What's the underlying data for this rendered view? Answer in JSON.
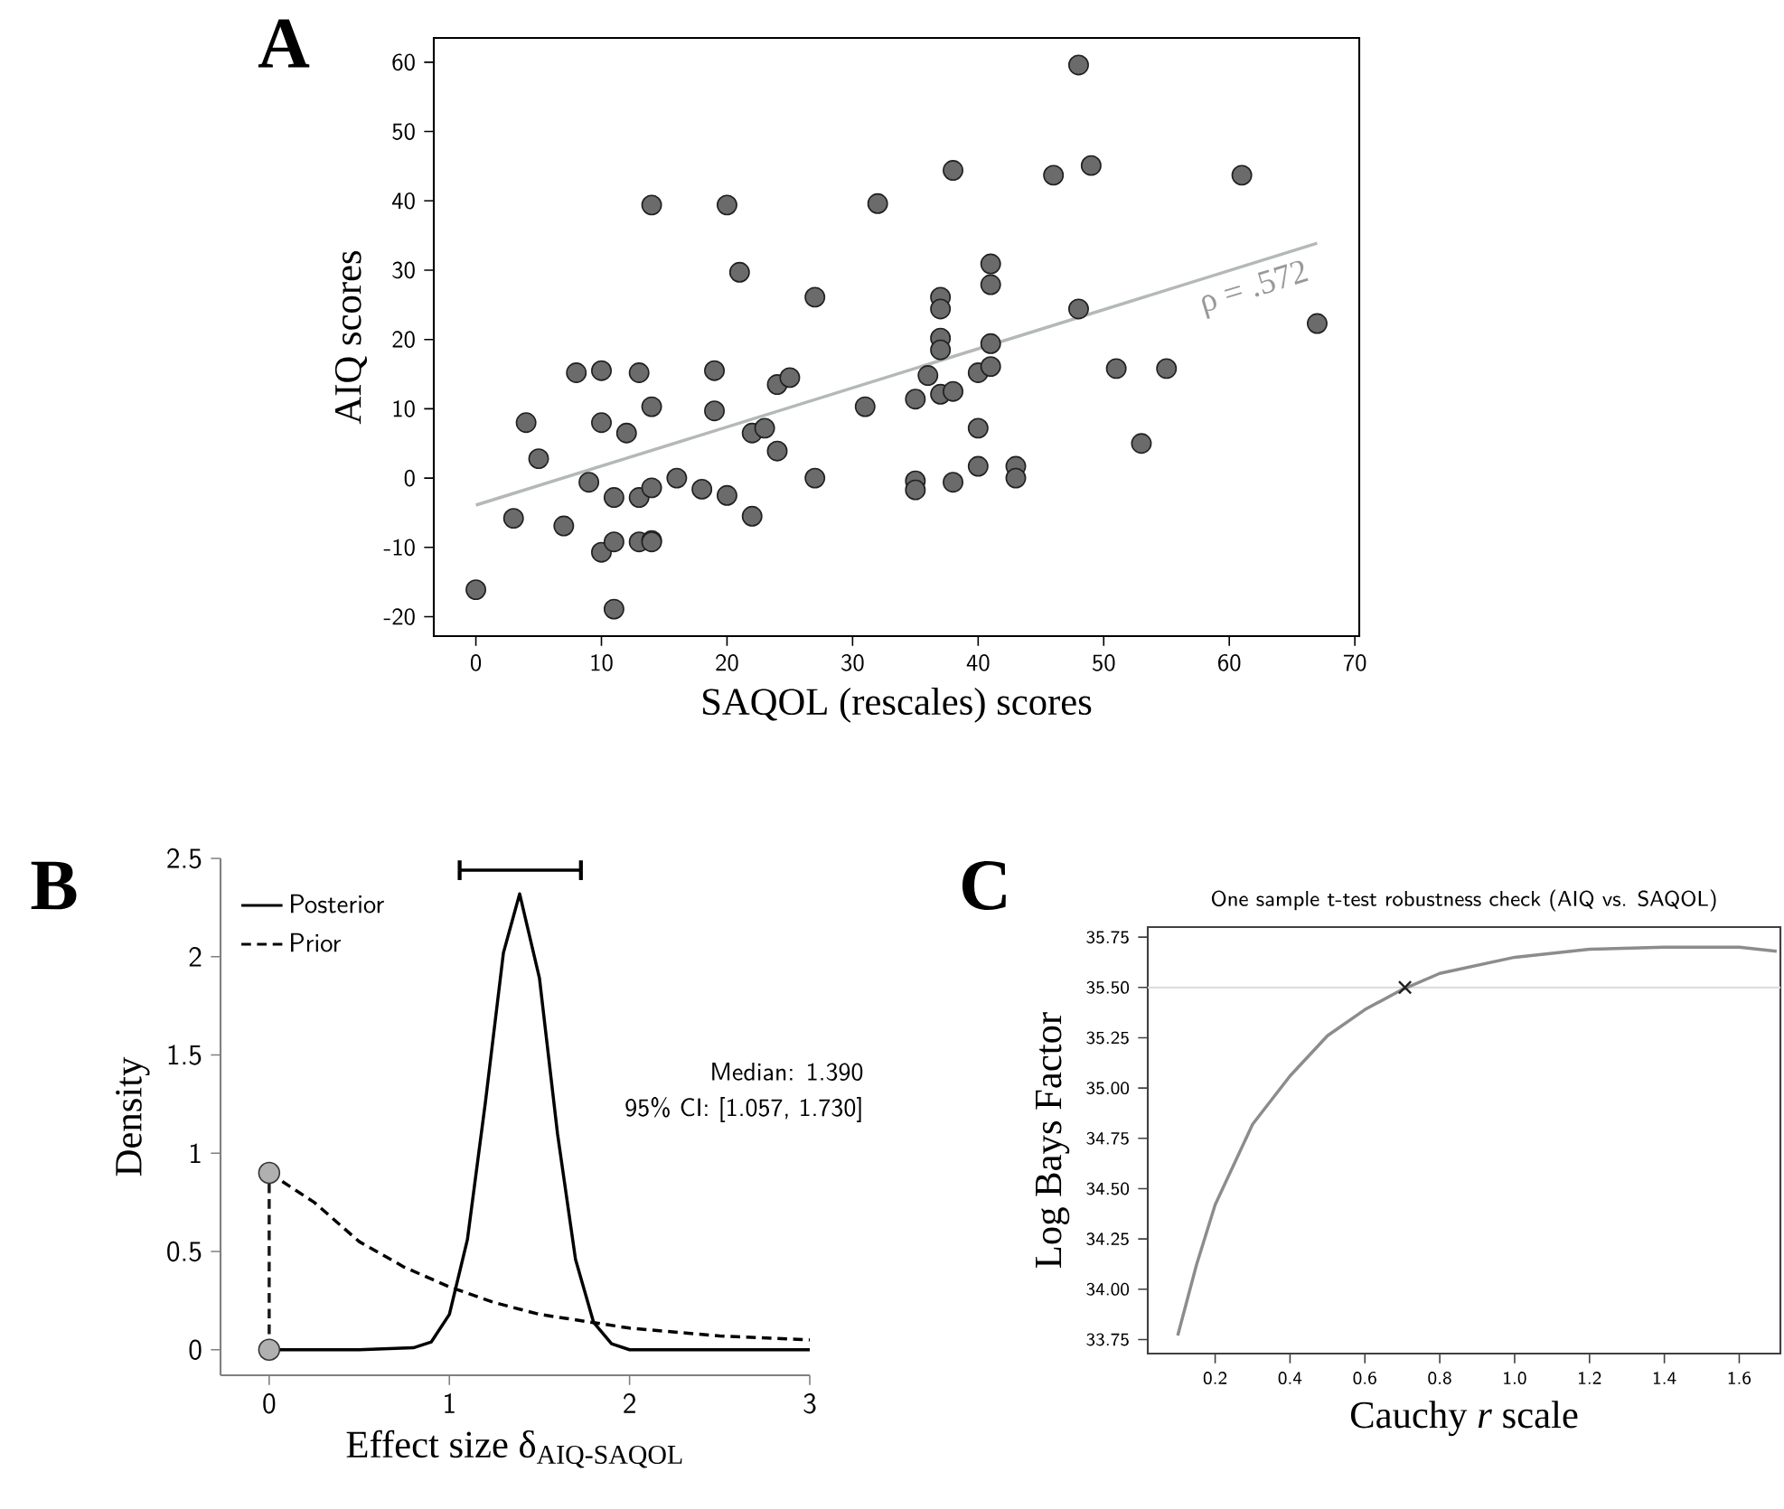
{
  "chart_data": [
    {
      "type": "scatter",
      "annotations": [
        "A",
        "ρ = .572"
      ],
      "xlabel": "SAQOL (rescales) scores",
      "ylabel": "AIQ scores",
      "xlim": [
        -3.35,
        70.35
      ],
      "ylim": [
        -22.8,
        63.5
      ],
      "xticks": [
        0,
        10,
        20,
        30,
        40,
        50,
        60,
        70
      ],
      "yticks": [
        -20,
        -10,
        0,
        10,
        20,
        30,
        40,
        50,
        60
      ],
      "marker": "circle",
      "series": [
        {
          "color": "#6b6b6b",
          "x": [
            0,
            3,
            4,
            5,
            7,
            8,
            9,
            10,
            10,
            10,
            11,
            11,
            11,
            12,
            13,
            13,
            13,
            14,
            14,
            14,
            14,
            14,
            16,
            18,
            19,
            19,
            20,
            20,
            21,
            22,
            22,
            23,
            24,
            24,
            25,
            27,
            27,
            31,
            32,
            35,
            35,
            35,
            36,
            37,
            37,
            37,
            37,
            37,
            38,
            38,
            38,
            40,
            40,
            40,
            41,
            41,
            41,
            41,
            43,
            43,
            46,
            48,
            48,
            49,
            51,
            53,
            55,
            61,
            67
          ],
          "values": [
            -16.1,
            -5.8,
            8,
            2.8,
            -6.9,
            15.2,
            -0.6,
            15.5,
            8,
            -10.7,
            -2.8,
            -9.2,
            -18.9,
            6.5,
            15.2,
            -2.8,
            -9.2,
            39.4,
            10.3,
            -1.4,
            -9,
            -9.2,
            0,
            -1.6,
            15.5,
            9.7,
            39.4,
            -2.5,
            29.7,
            6.5,
            -5.5,
            7.2,
            13.5,
            3.9,
            14.5,
            26.1,
            0,
            10.3,
            39.6,
            11.4,
            -0.4,
            -1.7,
            14.8,
            26.1,
            24.4,
            20.2,
            18.5,
            12.1,
            44.4,
            12.5,
            -0.6,
            15.2,
            7.2,
            1.7,
            30.9,
            27.9,
            19.4,
            16.1,
            1.7,
            0,
            43.7,
            59.6,
            24.4,
            45.1,
            15.8,
            5,
            15.8,
            43.7,
            22.3
          ]
        },
        {
          "type": "line",
          "marker": "none",
          "color": "#b4b8b8",
          "x": [
            0,
            67
          ],
          "values": [
            -3.9,
            33.9
          ]
        }
      ]
    },
    {
      "type": "line",
      "annotations": [
        "B",
        "Median: 1.390",
        "95% CI: [1.057, 1.730]"
      ],
      "xlabel": "Effect size δ$_{AIQ-SAQOL}$",
      "ylabel": "Density",
      "xlim": [
        -0.27,
        3
      ],
      "ylim": [
        -0.13,
        2.5
      ],
      "xticks": [
        0,
        1,
        2,
        3
      ],
      "yticks": [
        0,
        0.5,
        1,
        1.5,
        2,
        2.5
      ],
      "legend": "top left",
      "series": [
        {
          "name": "Posterior",
          "color": "#000000",
          "x": [
            0,
            0.5,
            0.8,
            0.9,
            1.0,
            1.1,
            1.2,
            1.3,
            1.39,
            1.5,
            1.6,
            1.7,
            1.8,
            1.9,
            2.0,
            2.2,
            2.5,
            3
          ],
          "values": [
            0,
            0,
            0.01,
            0.04,
            0.18,
            0.56,
            1.26,
            2.02,
            2.32,
            1.89,
            1.1,
            0.46,
            0.14,
            0.03,
            0,
            0,
            0,
            0
          ]
        },
        {
          "name": "Prior",
          "color": "#000000",
          "line_style": "dashed",
          "x": [
            0,
            0.25,
            0.5,
            0.75,
            1,
            1.25,
            1.5,
            2,
            2.5,
            3
          ],
          "values": [
            0.9,
            0.75,
            0.55,
            0.42,
            0.32,
            0.24,
            0.18,
            0.11,
            0.07,
            0.05
          ]
        },
        {
          "color": "#b0b0b0",
          "marker": "circle",
          "line_style": "dashed",
          "x": [
            0,
            0
          ],
          "values": [
            0,
            0.9
          ]
        },
        {
          "color": "#000000",
          "x": [
            1.057,
            1.73
          ],
          "values": [
            2.44,
            2.44
          ],
          "errors": [
            0.05,
            0.05
          ]
        }
      ]
    },
    {
      "type": "line",
      "title": "One sample t-test robustness check (AIQ vs. SAQOL)",
      "annotations": [
        "C"
      ],
      "xlabel": "Cauchy *r* scale",
      "ylabel": "Log Bays Factor",
      "xlim": [
        0.02,
        1.71
      ],
      "ylim": [
        33.68,
        35.8
      ],
      "xticks": [
        0.2,
        0.4,
        0.6,
        0.8,
        {
          "value": 1,
          "label": "1.0"
        },
        1.2,
        1.4,
        1.6
      ],
      "yticks": [
        33.75,
        {
          "value": 34,
          "label": "34.00"
        },
        34.25,
        {
          "value": 34.5,
          "label": "34.50"
        },
        34.75,
        {
          "value": 35,
          "label": "35.00"
        },
        35.25,
        {
          "value": 35.5,
          "label": "35.50"
        },
        35.75
      ],
      "ref_lines": [
        {
          "axis": "y",
          "value": 35.5,
          "color": "#dddddd"
        }
      ],
      "series": [
        {
          "color": "#8c8c8c",
          "x": [
            0.1,
            0.15,
            0.2,
            0.3,
            0.4,
            0.5,
            0.6,
            0.7,
            0.8,
            1.0,
            1.2,
            1.4,
            1.6,
            1.7
          ],
          "values": [
            33.77,
            34.12,
            34.42,
            34.82,
            35.06,
            35.26,
            35.39,
            35.49,
            35.57,
            35.65,
            35.69,
            35.7,
            35.7,
            35.68
          ]
        },
        {
          "type": "scatter",
          "marker": "cross",
          "color": "#202020",
          "x": [
            0.707
          ],
          "values": [
            35.5
          ]
        }
      ]
    }
  ]
}
